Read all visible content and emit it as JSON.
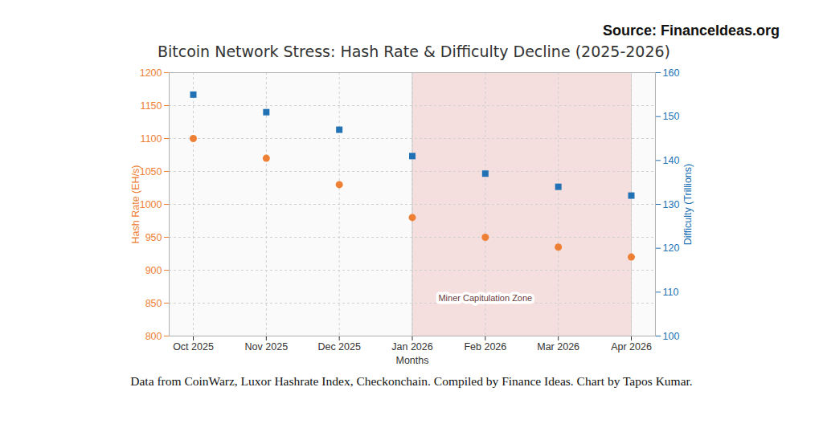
{
  "chart_data": {
    "type": "line",
    "title": "Bitcoin Network Stress: Hash Rate & Difficulty Decline (2025-2026)",
    "source": "Source: FinanceIdeas.org",
    "caption": "Data from CoinWarz, Luxor Hashrate Index, Checkonchain. Compiled by Finance Ideas. Chart by Tapos Kumar.",
    "x": [
      "Oct 2025",
      "Nov 2025",
      "Dec 2025",
      "Jan 2026",
      "Feb 2026",
      "Mar 2026",
      "Apr 2026"
    ],
    "xlabel": "Months",
    "ylabel": "Hash Rate (EH/s)",
    "y2label": "Difficulty (Trillions)",
    "ylim": [
      800,
      1200
    ],
    "yticks": [
      800,
      850,
      900,
      950,
      1000,
      1050,
      1100,
      1150,
      1200
    ],
    "y2lim": [
      100,
      160
    ],
    "y2ticks": [
      100,
      110,
      120,
      130,
      140,
      150,
      160
    ],
    "grid": true,
    "series": [
      {
        "name": "Hash Rate (EH/s)",
        "color": "#ee8036",
        "marker": "circle",
        "values": [
          1100,
          1070,
          1030,
          980,
          950,
          935,
          920
        ]
      },
      {
        "name": "Difficulty (Trillions)",
        "color": "#2171b5",
        "marker": "square",
        "axis": "y2",
        "values": [
          155,
          151,
          147,
          141,
          137,
          134,
          132
        ]
      }
    ],
    "annotations": [
      {
        "text": "Miner Capitulation Zone",
        "x_start": "Jan 2026",
        "x_end": "Apr 2026"
      }
    ]
  }
}
